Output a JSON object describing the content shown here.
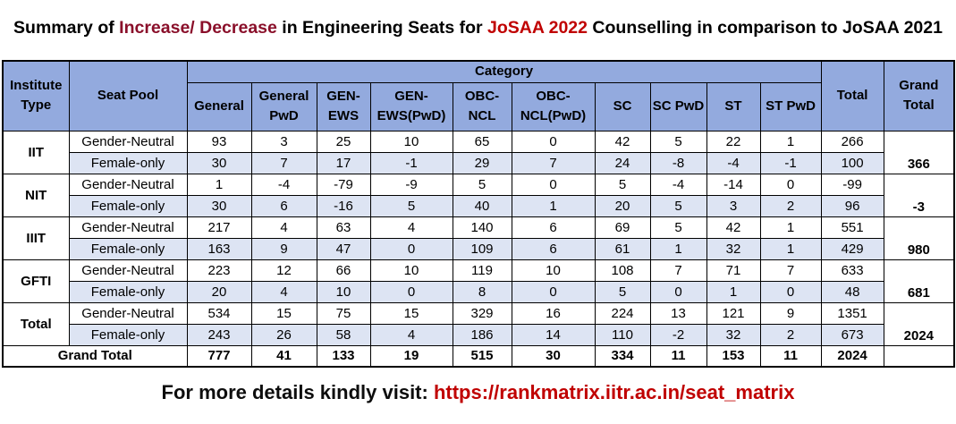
{
  "title": {
    "part1": "Summary of ",
    "part2": "Increase/ Decrease",
    "part3": " in Engineering Seats for ",
    "part4": "JoSAA 2022",
    "part5": " Counselling in comparison to JoSAA 2021"
  },
  "table": {
    "headers": {
      "institute_type": "Institute Type",
      "seat_pool": "Seat Pool",
      "category": "Category",
      "total": "Total",
      "grand_total": "Grand Total",
      "categories": [
        "General",
        "General PwD",
        "GEN-EWS",
        "GEN-EWS(PwD)",
        "OBC-NCL",
        "OBC-NCL(PwD)",
        "SC",
        "SC PwD",
        "ST",
        "ST PwD"
      ]
    },
    "groups": [
      {
        "type": "IIT",
        "grand_total": "366",
        "rows": [
          {
            "pool": "Gender-Neutral",
            "values": [
              "93",
              "3",
              "25",
              "10",
              "65",
              "0",
              "42",
              "5",
              "22",
              "1"
            ],
            "total": "266"
          },
          {
            "pool": "Female-only",
            "values": [
              "30",
              "7",
              "17",
              "-1",
              "29",
              "7",
              "24",
              "-8",
              "-4",
              "-1"
            ],
            "total": "100"
          }
        ]
      },
      {
        "type": "NIT",
        "grand_total": "-3",
        "rows": [
          {
            "pool": "Gender-Neutral",
            "values": [
              "1",
              "-4",
              "-79",
              "-9",
              "5",
              "0",
              "5",
              "-4",
              "-14",
              "0"
            ],
            "total": "-99"
          },
          {
            "pool": "Female-only",
            "values": [
              "30",
              "6",
              "-16",
              "5",
              "40",
              "1",
              "20",
              "5",
              "3",
              "2"
            ],
            "total": "96"
          }
        ]
      },
      {
        "type": "IIIT",
        "grand_total": "980",
        "rows": [
          {
            "pool": "Gender-Neutral",
            "values": [
              "217",
              "4",
              "63",
              "4",
              "140",
              "6",
              "69",
              "5",
              "42",
              "1"
            ],
            "total": "551"
          },
          {
            "pool": "Female-only",
            "values": [
              "163",
              "9",
              "47",
              "0",
              "109",
              "6",
              "61",
              "1",
              "32",
              "1"
            ],
            "total": "429"
          }
        ]
      },
      {
        "type": "GFTI",
        "grand_total": "681",
        "rows": [
          {
            "pool": "Gender-Neutral",
            "values": [
              "223",
              "12",
              "66",
              "10",
              "119",
              "10",
              "108",
              "7",
              "71",
              "7"
            ],
            "total": "633"
          },
          {
            "pool": "Female-only",
            "values": [
              "20",
              "4",
              "10",
              "0",
              "8",
              "0",
              "5",
              "0",
              "1",
              "0"
            ],
            "total": "48"
          }
        ]
      },
      {
        "type": "Total",
        "grand_total": "2024",
        "rows": [
          {
            "pool": "Gender-Neutral",
            "values": [
              "534",
              "15",
              "75",
              "15",
              "329",
              "16",
              "224",
              "13",
              "121",
              "9"
            ],
            "total": "1351"
          },
          {
            "pool": "Female-only",
            "values": [
              "243",
              "26",
              "58",
              "4",
              "186",
              "14",
              "110",
              "-2",
              "32",
              "2"
            ],
            "total": "673"
          }
        ]
      }
    ],
    "grand_total_row": {
      "label": "Grand Total",
      "values": [
        "777",
        "41",
        "133",
        "19",
        "515",
        "30",
        "334",
        "11",
        "153",
        "11"
      ],
      "total": "2024"
    }
  },
  "footer": {
    "label": "For more details kindly visit: ",
    "link": "https://rankmatrix.iitr.ac.in/seat_matrix"
  }
}
